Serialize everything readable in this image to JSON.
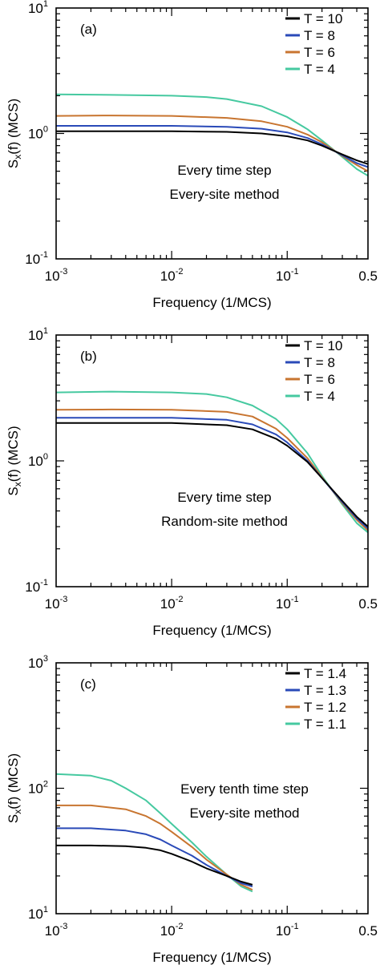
{
  "chart_data": [
    {
      "type": "line",
      "panel_label": "(a)",
      "xlabel": "Frequency (1/MCS)",
      "ylabel": "S_x(f) (MCS)",
      "xscale": "log",
      "yscale": "log",
      "xlim": [
        0.001,
        0.5
      ],
      "ylim": [
        0.1,
        10
      ],
      "x_ticks": [
        {
          "value": 0.001,
          "base": "10",
          "exp": "-3"
        },
        {
          "value": 0.01,
          "base": "10",
          "exp": "-2"
        },
        {
          "value": 0.1,
          "base": "10",
          "exp": "-1"
        },
        {
          "value": 0.5,
          "base": "0.5",
          "exp": ""
        }
      ],
      "y_ticks": [
        {
          "value": 0.1,
          "base": "10",
          "exp": "-1"
        },
        {
          "value": 1,
          "base": "10",
          "exp": "0"
        },
        {
          "value": 10,
          "base": "10",
          "exp": "1"
        }
      ],
      "annotations": [
        "Every time step",
        "Every-site method"
      ],
      "legend_position": "top-right",
      "series": [
        {
          "name": "T = 10",
          "color": "#000000",
          "x": [
            0.001,
            0.003,
            0.01,
            0.03,
            0.06,
            0.1,
            0.15,
            0.2,
            0.3,
            0.4,
            0.5
          ],
          "y": [
            1.04,
            1.04,
            1.04,
            1.03,
            1.0,
            0.95,
            0.88,
            0.8,
            0.68,
            0.61,
            0.57
          ]
        },
        {
          "name": "T = 8",
          "color": "#2a4ab8",
          "x": [
            0.001,
            0.003,
            0.01,
            0.03,
            0.06,
            0.1,
            0.15,
            0.2,
            0.3,
            0.4,
            0.5
          ],
          "y": [
            1.15,
            1.15,
            1.15,
            1.13,
            1.09,
            1.02,
            0.92,
            0.82,
            0.67,
            0.58,
            0.54
          ]
        },
        {
          "name": "T = 6",
          "color": "#c87530",
          "x": [
            0.001,
            0.003,
            0.01,
            0.03,
            0.06,
            0.1,
            0.15,
            0.2,
            0.3,
            0.4,
            0.5
          ],
          "y": [
            1.38,
            1.39,
            1.38,
            1.33,
            1.25,
            1.13,
            0.98,
            0.85,
            0.66,
            0.56,
            0.5
          ]
        },
        {
          "name": "T = 4",
          "color": "#46c9a0",
          "x": [
            0.001,
            0.003,
            0.01,
            0.02,
            0.03,
            0.06,
            0.1,
            0.15,
            0.2,
            0.3,
            0.4,
            0.5
          ],
          "y": [
            2.05,
            2.03,
            2.0,
            1.95,
            1.88,
            1.65,
            1.35,
            1.08,
            0.88,
            0.65,
            0.52,
            0.46
          ]
        }
      ]
    },
    {
      "type": "line",
      "panel_label": "(b)",
      "xlabel": "Frequency (1/MCS)",
      "ylabel": "S_x(f) (MCS)",
      "xscale": "log",
      "yscale": "log",
      "xlim": [
        0.001,
        0.5
      ],
      "ylim": [
        0.1,
        10
      ],
      "x_ticks": [
        {
          "value": 0.001,
          "base": "10",
          "exp": "-3"
        },
        {
          "value": 0.01,
          "base": "10",
          "exp": "-2"
        },
        {
          "value": 0.1,
          "base": "10",
          "exp": "-1"
        },
        {
          "value": 0.5,
          "base": "0.5",
          "exp": ""
        }
      ],
      "y_ticks": [
        {
          "value": 0.1,
          "base": "10",
          "exp": "-1"
        },
        {
          "value": 1,
          "base": "10",
          "exp": "0"
        },
        {
          "value": 10,
          "base": "10",
          "exp": "1"
        }
      ],
      "annotations": [
        "Every time step",
        "Random-site method"
      ],
      "legend_position": "top-right",
      "series": [
        {
          "name": "T = 10",
          "color": "#000000",
          "x": [
            0.001,
            0.003,
            0.01,
            0.03,
            0.05,
            0.08,
            0.1,
            0.15,
            0.2,
            0.3,
            0.4,
            0.5
          ],
          "y": [
            2.0,
            2.0,
            2.0,
            1.92,
            1.78,
            1.5,
            1.32,
            0.98,
            0.73,
            0.48,
            0.36,
            0.3
          ]
        },
        {
          "name": "T = 8",
          "color": "#2a4ab8",
          "x": [
            0.001,
            0.003,
            0.01,
            0.03,
            0.05,
            0.08,
            0.1,
            0.15,
            0.2,
            0.3,
            0.4,
            0.5
          ],
          "y": [
            2.2,
            2.2,
            2.2,
            2.12,
            1.95,
            1.62,
            1.4,
            1.0,
            0.73,
            0.47,
            0.35,
            0.29
          ]
        },
        {
          "name": "T = 6",
          "color": "#c87530",
          "x": [
            0.001,
            0.003,
            0.01,
            0.03,
            0.05,
            0.08,
            0.1,
            0.15,
            0.2,
            0.3,
            0.4,
            0.5
          ],
          "y": [
            2.55,
            2.56,
            2.55,
            2.45,
            2.25,
            1.8,
            1.52,
            1.05,
            0.74,
            0.46,
            0.34,
            0.28
          ]
        },
        {
          "name": "T = 4",
          "color": "#46c9a0",
          "x": [
            0.001,
            0.003,
            0.01,
            0.02,
            0.03,
            0.05,
            0.08,
            0.1,
            0.15,
            0.2,
            0.3,
            0.4,
            0.5
          ],
          "y": [
            3.5,
            3.55,
            3.5,
            3.4,
            3.2,
            2.75,
            2.15,
            1.78,
            1.15,
            0.76,
            0.45,
            0.32,
            0.27
          ]
        }
      ]
    },
    {
      "type": "line",
      "panel_label": "(c)",
      "xlabel": "Frequency (1/MCS)",
      "ylabel": "S_x(f) (MCS)",
      "xscale": "log",
      "yscale": "log",
      "xlim": [
        0.001,
        0.5
      ],
      "ylim": [
        10,
        1000
      ],
      "x_ticks": [
        {
          "value": 0.001,
          "base": "10",
          "exp": "-3"
        },
        {
          "value": 0.01,
          "base": "10",
          "exp": "-2"
        },
        {
          "value": 0.1,
          "base": "10",
          "exp": "-1"
        },
        {
          "value": 0.5,
          "base": "0.5",
          "exp": ""
        }
      ],
      "y_ticks": [
        {
          "value": 10,
          "base": "10",
          "exp": "1"
        },
        {
          "value": 100,
          "base": "10",
          "exp": "2"
        },
        {
          "value": 1000,
          "base": "10",
          "exp": "3"
        }
      ],
      "annotations": [
        "Every tenth time step",
        "Every-site method"
      ],
      "legend_position": "top-right",
      "series": [
        {
          "name": "T = 1.4",
          "color": "#000000",
          "x": [
            0.001,
            0.002,
            0.004,
            0.006,
            0.008,
            0.01,
            0.015,
            0.02,
            0.03,
            0.04,
            0.05
          ],
          "y": [
            35,
            35,
            34.5,
            33.5,
            32,
            30,
            26,
            23,
            20,
            18,
            17
          ]
        },
        {
          "name": "T = 1.3",
          "color": "#2a4ab8",
          "x": [
            0.001,
            0.002,
            0.004,
            0.006,
            0.008,
            0.01,
            0.015,
            0.02,
            0.03,
            0.04,
            0.05
          ],
          "y": [
            48,
            48,
            46,
            43,
            39,
            35,
            29,
            24.5,
            20,
            17.5,
            16.5
          ]
        },
        {
          "name": "T = 1.2",
          "color": "#c87530",
          "x": [
            0.001,
            0.002,
            0.004,
            0.006,
            0.008,
            0.01,
            0.015,
            0.02,
            0.03,
            0.04,
            0.05
          ],
          "y": [
            73,
            73,
            68,
            60,
            52,
            45,
            34,
            27,
            20.5,
            17,
            15.5
          ]
        },
        {
          "name": "T = 1.1",
          "color": "#46c9a0",
          "x": [
            0.001,
            0.002,
            0.003,
            0.004,
            0.006,
            0.008,
            0.01,
            0.015,
            0.02,
            0.03,
            0.04,
            0.05
          ],
          "y": [
            130,
            126,
            115,
            100,
            80,
            63,
            52,
            37,
            28.5,
            20.5,
            16.5,
            15
          ]
        }
      ]
    }
  ]
}
